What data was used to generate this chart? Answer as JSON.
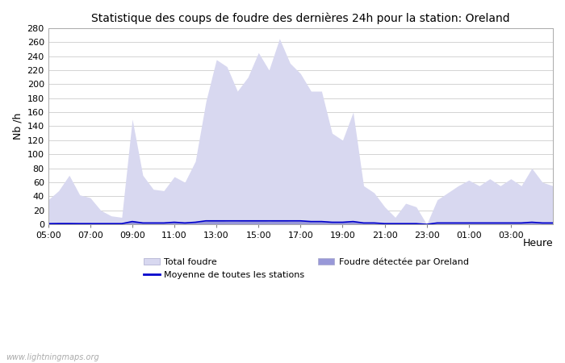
{
  "title": "Statistique des coups de foudre des dernières 24h pour la station: Oreland",
  "xlabel": "Heure",
  "ylabel": "Nb /h",
  "watermark": "www.lightningmaps.org",
  "ylim": [
    0,
    280
  ],
  "yticks": [
    0,
    20,
    40,
    60,
    80,
    100,
    120,
    140,
    160,
    180,
    200,
    220,
    240,
    260,
    280
  ],
  "xtick_labels": [
    "05:00",
    "07:00",
    "09:00",
    "11:00",
    "13:00",
    "15:00",
    "17:00",
    "19:00",
    "21:00",
    "23:00",
    "01:00",
    "03:00"
  ],
  "xtick_positions": [
    5,
    7,
    9,
    11,
    13,
    15,
    17,
    19,
    21,
    23,
    25,
    27
  ],
  "xlim": [
    5.0,
    29.0
  ],
  "color_total": "#d8d8f0",
  "color_detected": "#9898d8",
  "color_moyenne": "#0000cc",
  "bg_color": "#ffffff",
  "grid_color": "#cccccc",
  "legend_total": "Total foudre",
  "legend_detected": "Foudre détectée par Oreland",
  "legend_moyenne": "Moyenne de toutes les stations",
  "x_hours": [
    5.0,
    5.5,
    6.0,
    6.5,
    7.0,
    7.5,
    8.0,
    8.5,
    9.0,
    9.5,
    10.0,
    10.5,
    11.0,
    11.5,
    12.0,
    12.5,
    13.0,
    13.5,
    14.0,
    14.5,
    15.0,
    15.5,
    16.0,
    16.5,
    17.0,
    17.5,
    18.0,
    18.5,
    19.0,
    19.5,
    20.0,
    20.5,
    21.0,
    21.5,
    22.0,
    22.5,
    23.0,
    23.5,
    24.0,
    24.5,
    25.0,
    25.5,
    26.0,
    26.5,
    27.0,
    27.5,
    28.0,
    28.5,
    29.0
  ],
  "total_foudre": [
    35,
    48,
    70,
    42,
    38,
    20,
    12,
    10,
    150,
    70,
    50,
    48,
    68,
    60,
    90,
    175,
    235,
    225,
    190,
    210,
    245,
    220,
    265,
    230,
    215,
    190,
    190,
    130,
    120,
    160,
    55,
    45,
    25,
    10,
    30,
    25,
    0,
    35,
    45,
    55,
    63,
    55,
    65,
    55,
    65,
    55,
    80,
    60,
    55
  ],
  "detected_foudre": [
    2,
    3,
    3,
    2,
    2,
    1,
    1,
    1,
    5,
    3,
    2,
    2,
    3,
    2,
    3,
    5,
    6,
    5,
    5,
    6,
    6,
    5,
    6,
    5,
    5,
    4,
    4,
    3,
    3,
    4,
    2,
    2,
    1,
    1,
    1,
    1,
    0,
    2,
    2,
    2,
    2,
    2,
    2,
    2,
    2,
    2,
    3,
    2,
    2
  ],
  "moyenne": [
    1,
    1,
    1,
    1,
    1,
    1,
    1,
    1,
    4,
    2,
    2,
    2,
    3,
    2,
    3,
    5,
    5,
    5,
    5,
    5,
    5,
    5,
    5,
    5,
    5,
    4,
    4,
    3,
    3,
    4,
    2,
    2,
    1,
    1,
    1,
    1,
    0,
    2,
    2,
    2,
    2,
    2,
    2,
    2,
    2,
    2,
    3,
    2,
    2
  ]
}
